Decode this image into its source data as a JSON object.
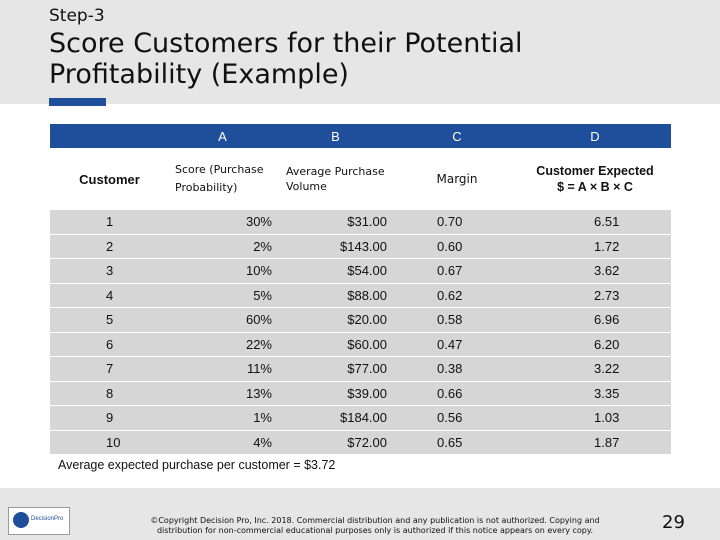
{
  "header": {
    "step": "Step-3",
    "title": "Score Customers for their Potential Profitability (Example)"
  },
  "table": {
    "letters": [
      "A",
      "B",
      "C",
      "D"
    ],
    "subheaders": {
      "customer": "Customer",
      "score": "Score (Purchase Probability)",
      "avg": "Average Purchase Volume",
      "margin": "Margin",
      "expected_line1": "Customer Expected",
      "expected_line2": "$ = A × B × C"
    },
    "rows": [
      {
        "customer": "1",
        "score": "30%",
        "volume": "$31.00",
        "margin": "0.70",
        "expected": "6.51"
      },
      {
        "customer": "2",
        "score": "2%",
        "volume": "$143.00",
        "margin": "0.60",
        "expected": "1.72"
      },
      {
        "customer": "3",
        "score": "10%",
        "volume": "$54.00",
        "margin": "0.67",
        "expected": "3.62"
      },
      {
        "customer": "4",
        "score": "5%",
        "volume": "$88.00",
        "margin": "0.62",
        "expected": "2.73"
      },
      {
        "customer": "5",
        "score": "60%",
        "volume": "$20.00",
        "margin": "0.58",
        "expected": "6.96"
      },
      {
        "customer": "6",
        "score": "22%",
        "volume": "$60.00",
        "margin": "0.47",
        "expected": "6.20"
      },
      {
        "customer": "7",
        "score": "11%",
        "volume": "$77.00",
        "margin": "0.38",
        "expected": "3.22"
      },
      {
        "customer": "8",
        "score": "13%",
        "volume": "$39.00",
        "margin": "0.66",
        "expected": "3.35"
      },
      {
        "customer": "9",
        "score": "1%",
        "volume": "$184.00",
        "margin": "0.56",
        "expected": "1.03"
      },
      {
        "customer": "10",
        "score": "4%",
        "volume": "$72.00",
        "margin": "0.65",
        "expected": "1.87"
      }
    ]
  },
  "note": "Average expected purchase per customer = $3.72",
  "footer": {
    "logo_text": "DecisionPro",
    "copyright": "©Copyright Decision Pro, Inc. 2018. Commercial distribution and any publication is not authorized. Copying and distribution for non-commercial educational purposes only is authorized if this notice appears on every copy.",
    "page_number": "29"
  },
  "colors": {
    "accent": "#1f4e9a",
    "row_fill": "#d6d6d6",
    "band": "#e6e6e6"
  }
}
